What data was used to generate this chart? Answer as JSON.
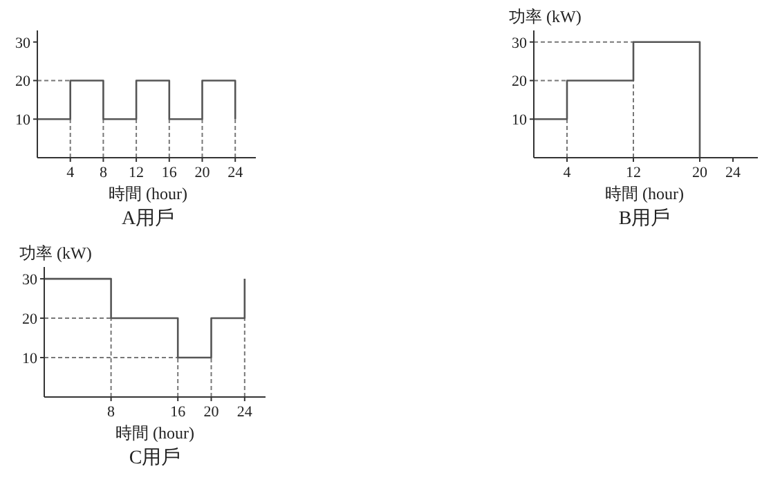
{
  "chart_data": [
    {
      "type": "step",
      "title": "A用戶",
      "xlabel": "時間 (hour)",
      "xlim": [
        0,
        26.5
      ],
      "ylim": [
        0,
        33
      ],
      "xticks": [
        4,
        8,
        12,
        16,
        20,
        24
      ],
      "yticks": [
        10,
        20,
        30
      ],
      "series": [
        {
          "type": "line",
          "line_style": "dashed",
          "color": "#777777",
          "x": [
            0,
            4,
            null,
            4,
            4,
            null,
            8,
            8,
            null,
            12,
            12,
            null,
            16,
            16,
            null,
            20,
            20,
            null,
            24,
            24
          ],
          "values": [
            20,
            20,
            null,
            0,
            10,
            null,
            0,
            10,
            null,
            0,
            10,
            null,
            0,
            10,
            null,
            0,
            10,
            null,
            0,
            10
          ]
        },
        {
          "line_style": "solid",
          "color": "#555555",
          "x": [
            0,
            4,
            8,
            12,
            16,
            20,
            24
          ],
          "values": [
            10,
            20,
            10,
            20,
            10,
            20,
            10
          ]
        }
      ]
    },
    {
      "type": "step",
      "title": "B用戶",
      "xlabel": "時間 (hour)",
      "ylabel": "功率 (kW)",
      "xlim": [
        0,
        27
      ],
      "ylim": [
        0,
        33
      ],
      "xticks": [
        4,
        12,
        20,
        24
      ],
      "yticks": [
        10,
        20,
        30
      ],
      "series": [
        {
          "type": "line",
          "line_style": "dashed",
          "color": "#777777",
          "x": [
            0,
            4,
            null,
            0,
            12,
            null,
            4,
            4,
            null,
            12,
            12
          ],
          "values": [
            20,
            20,
            null,
            30,
            30,
            null,
            0,
            10,
            null,
            0,
            20
          ]
        },
        {
          "line_style": "solid",
          "color": "#555555",
          "x": [
            0,
            4,
            12,
            20
          ],
          "values": [
            10,
            20,
            30,
            0
          ]
        }
      ]
    },
    {
      "type": "step",
      "title": "C用戶",
      "xlabel": "時間 (hour)",
      "ylabel": "功率 (kW)",
      "xlim": [
        0,
        26.5
      ],
      "ylim": [
        0,
        33
      ],
      "xticks": [
        8,
        16,
        20,
        24
      ],
      "yticks": [
        10,
        20,
        30
      ],
      "series": [
        {
          "type": "line",
          "line_style": "dashed",
          "color": "#777777",
          "x": [
            0,
            8,
            null,
            0,
            16,
            null,
            8,
            8,
            null,
            16,
            16,
            null,
            20,
            20,
            null,
            24,
            24
          ],
          "values": [
            20,
            20,
            null,
            10,
            10,
            null,
            0,
            20,
            null,
            0,
            10,
            null,
            0,
            10,
            null,
            0,
            20
          ]
        },
        {
          "line_style": "solid",
          "color": "#555555",
          "x": [
            0,
            8,
            16,
            20,
            24
          ],
          "values": [
            30,
            20,
            10,
            20,
            30
          ]
        }
      ]
    }
  ]
}
